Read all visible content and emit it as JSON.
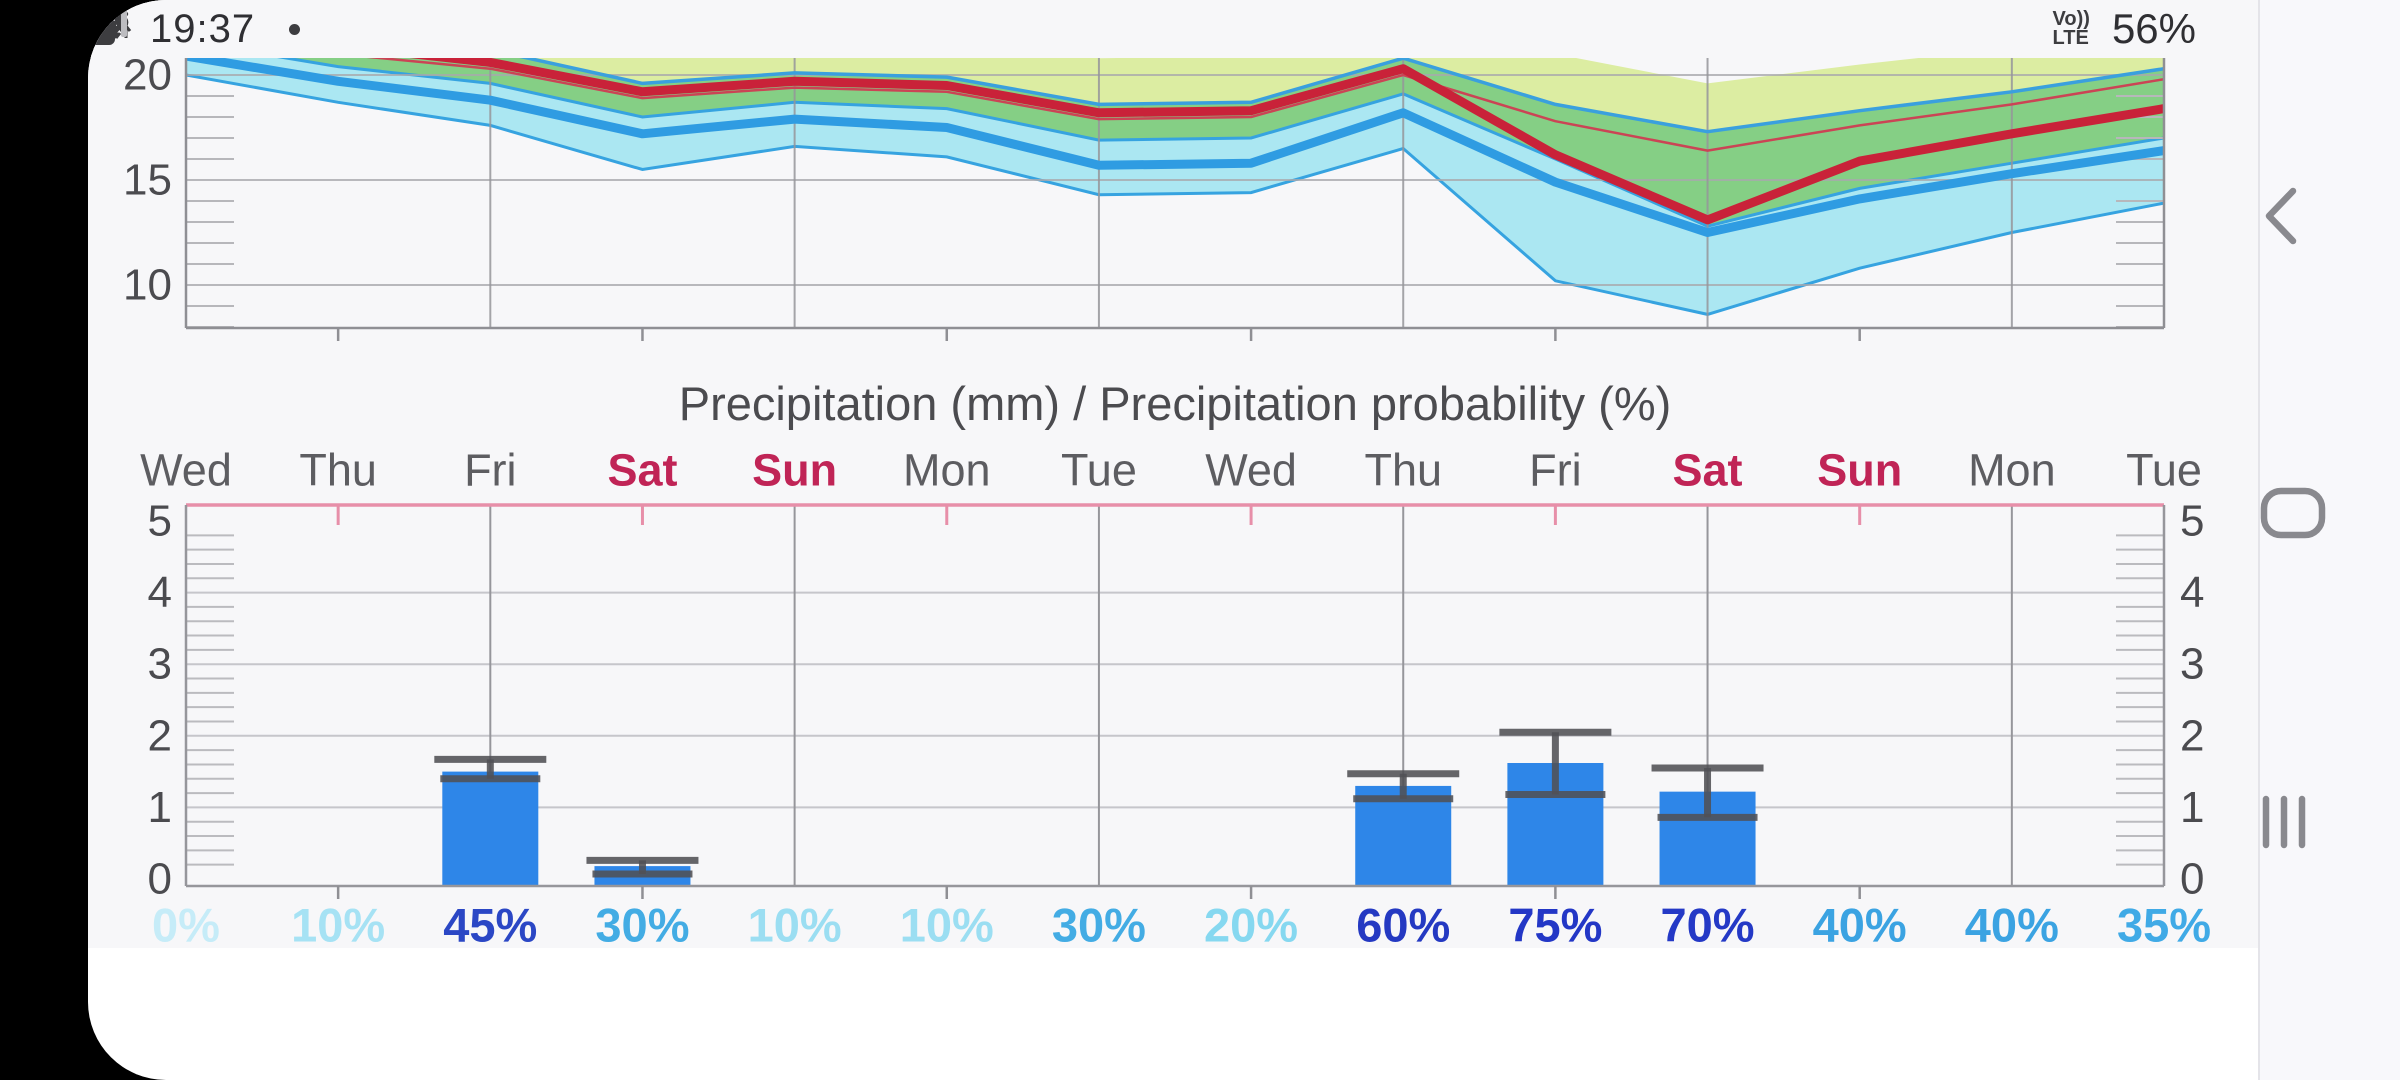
{
  "status_bar": {
    "time": "19:37",
    "left_icons": [
      "photo-icon",
      "chrome-icon",
      "cloud-sync-icon",
      "notification-dot"
    ],
    "right_icons": [
      "alarm-icon",
      "wifi-icon",
      "volte-indicator",
      "signal-strength-icon",
      "battery-icon"
    ],
    "volte_top": "Vo))",
    "volte_bottom": "LTE",
    "battery_percent": "56%",
    "battery_level": 0.56
  },
  "nav_bar": {
    "buttons": [
      "back-button",
      "home-button",
      "recent-apps-button"
    ]
  },
  "charts": {
    "title": "Precipitation (mm) / Precipitation probability (%)"
  },
  "chart_data": [
    {
      "type": "area",
      "name": "temperature-ensemble-forecast",
      "yticks": [
        10,
        15,
        20
      ],
      "visible_y_range": [
        8,
        20.8
      ],
      "grid": true,
      "series": [
        {
          "name": "model1-outer-range-band",
          "type": "band",
          "color": "#dceda2",
          "upper": [
            24.5,
            23.8,
            23.2,
            21.8,
            22.2,
            22.0,
            20.8,
            20.9,
            22.6,
            21.0,
            19.6,
            20.5,
            21.3,
            22.3
          ],
          "lower": [
            23.0,
            22.0,
            21.2,
            19.6,
            20.1,
            19.9,
            18.6,
            18.7,
            20.8,
            18.6,
            17.3,
            18.3,
            19.2,
            20.3
          ]
        },
        {
          "name": "model1-inner-range-band",
          "type": "band",
          "color": "#85cf85",
          "upper": [
            23.0,
            22.0,
            21.2,
            19.6,
            20.1,
            19.9,
            18.6,
            18.7,
            20.8,
            18.6,
            17.3,
            18.3,
            19.2,
            20.3
          ],
          "lower": [
            21.3,
            20.1,
            19.3,
            17.7,
            18.4,
            18.1,
            16.6,
            16.7,
            18.8,
            11.0,
            9.2,
            11.5,
            13.2,
            14.6
          ]
        },
        {
          "name": "model2-range-band",
          "type": "band",
          "color": "#abe7f2",
          "edge_color": "#36a3e0",
          "upper": [
            21.6,
            20.4,
            19.6,
            18.0,
            18.7,
            18.4,
            16.9,
            17.0,
            19.1,
            16.0,
            12.8,
            14.6,
            15.8,
            17.0
          ],
          "lower": [
            20.0,
            18.7,
            17.6,
            15.5,
            16.6,
            16.1,
            14.3,
            14.4,
            16.5,
            10.2,
            8.6,
            10.8,
            12.5,
            13.9
          ]
        },
        {
          "name": "model1-outer-lower-edge",
          "type": "line",
          "color": "#cb4455",
          "width": 2.5,
          "values": [
            21.8,
            21.0,
            20.3,
            18.9,
            19.4,
            19.2,
            17.9,
            18.0,
            20.0,
            17.8,
            16.4,
            17.6,
            18.6,
            19.8
          ]
        },
        {
          "name": "model1-upper-edge",
          "type": "line",
          "color": "#3aa0de",
          "width": 3.5,
          "values": [
            23.0,
            22.0,
            21.2,
            19.6,
            20.1,
            19.9,
            18.6,
            18.7,
            20.8,
            18.6,
            17.3,
            18.3,
            19.2,
            20.3
          ]
        },
        {
          "name": "model1-median-temperature",
          "type": "line",
          "color": "#c92239",
          "width": 9,
          "values": [
            22.4,
            21.4,
            20.6,
            19.2,
            19.7,
            19.5,
            18.2,
            18.3,
            20.3,
            16.2,
            13.1,
            15.9,
            17.2,
            18.4
          ]
        },
        {
          "name": "model2-median-temperature",
          "type": "line",
          "color": "#2f9ce2",
          "width": 9,
          "values": [
            20.9,
            19.7,
            18.8,
            17.2,
            17.9,
            17.5,
            15.7,
            15.8,
            18.2,
            14.9,
            12.5,
            14.1,
            15.3,
            16.4
          ]
        }
      ]
    },
    {
      "type": "bar",
      "name": "precipitation-forecast",
      "categories": [
        {
          "label": "Wed",
          "weekend": false
        },
        {
          "label": "Thu",
          "weekend": false
        },
        {
          "label": "Fri",
          "weekend": false
        },
        {
          "label": "Sat",
          "weekend": true
        },
        {
          "label": "Sun",
          "weekend": true
        },
        {
          "label": "Mon",
          "weekend": false
        },
        {
          "label": "Tue",
          "weekend": false
        },
        {
          "label": "Wed",
          "weekend": false
        },
        {
          "label": "Thu",
          "weekend": false
        },
        {
          "label": "Fri",
          "weekend": false
        },
        {
          "label": "Sat",
          "weekend": true
        },
        {
          "label": "Sun",
          "weekend": true
        },
        {
          "label": "Mon",
          "weekend": false
        },
        {
          "label": "Tue",
          "weekend": false
        }
      ],
      "values": [
        0,
        0,
        1.5,
        0.18,
        0,
        0,
        0,
        0,
        1.3,
        1.62,
        1.22,
        0,
        0,
        0
      ],
      "error_low": [
        null,
        null,
        1.4,
        0.07,
        null,
        null,
        null,
        null,
        1.12,
        1.18,
        0.86,
        null,
        null,
        null
      ],
      "error_high": [
        null,
        null,
        1.67,
        0.26,
        null,
        null,
        null,
        null,
        1.47,
        2.05,
        1.55,
        null,
        null,
        null
      ],
      "probability_labels": [
        "0%",
        "10%",
        "45%",
        "30%",
        "10%",
        "10%",
        "30%",
        "20%",
        "60%",
        "75%",
        "70%",
        "40%",
        "40%",
        "35%"
      ],
      "probability_colors": [
        "#c6ecf8",
        "#a6e2f4",
        "#2b47c5",
        "#43ace4",
        "#9bdef2",
        "#9bdef2",
        "#43ace4",
        "#86d8f0",
        "#2439c2",
        "#2337c6",
        "#2439c6",
        "#3ba3e2",
        "#3ba3e2",
        "#40aae6"
      ],
      "yticks": [
        0,
        1,
        2,
        3,
        4,
        5
      ],
      "ylim": [
        0,
        5
      ],
      "bar_color": "#2e86e8",
      "whisker_color": "#515156",
      "weekday_label_color": "#5d5d61",
      "weekend_label_color": "#c02456",
      "top_border_color": "#e78fa9"
    }
  ]
}
